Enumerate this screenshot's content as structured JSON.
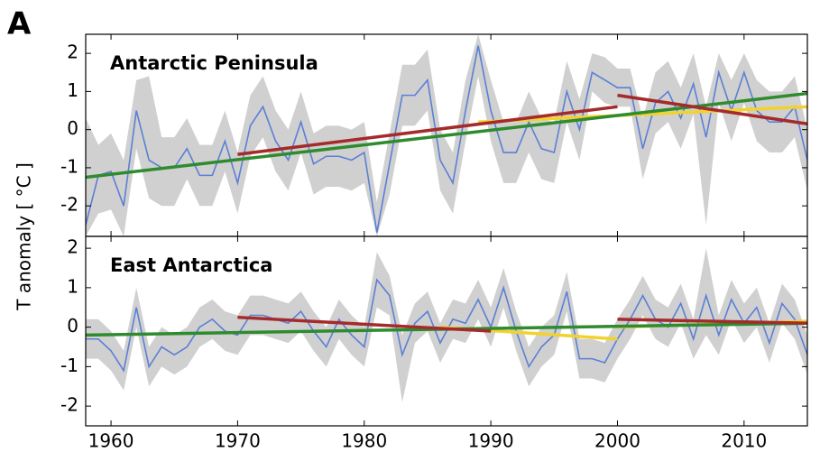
{
  "figure": {
    "panel_label": "A",
    "ylabel": "T anomaly [ °C ]"
  },
  "chart_data": [
    {
      "type": "line",
      "title": "Antarctic Peninsula",
      "x": [
        1958,
        1959,
        1960,
        1961,
        1962,
        1963,
        1964,
        1965,
        1966,
        1967,
        1968,
        1969,
        1970,
        1971,
        1972,
        1973,
        1974,
        1975,
        1976,
        1977,
        1978,
        1979,
        1980,
        1981,
        1982,
        1983,
        1984,
        1985,
        1986,
        1987,
        1988,
        1989,
        1990,
        1991,
        1992,
        1993,
        1994,
        1995,
        1996,
        1997,
        1998,
        1999,
        2000,
        2001,
        2002,
        2003,
        2004,
        2005,
        2006,
        2007,
        2008,
        2009,
        2010,
        2011,
        2012,
        2013,
        2014,
        2015
      ],
      "xlim": [
        1958,
        2015
      ],
      "ylim": [
        -2.8,
        2.5
      ],
      "yticks": [
        -2,
        -1,
        0,
        1,
        2
      ],
      "band": {
        "color": "#d0d0d0",
        "upper": [
          0.3,
          -0.4,
          -0.1,
          -0.8,
          1.3,
          1.4,
          -0.2,
          -0.2,
          0.3,
          -0.4,
          -0.4,
          0.5,
          -0.6,
          0.9,
          1.4,
          0.5,
          0.0,
          1.0,
          -0.1,
          0.1,
          0.1,
          0.0,
          0.2,
          -1.9,
          -0.1,
          1.7,
          1.7,
          2.1,
          0.0,
          -0.6,
          1.3,
          2.5,
          1.3,
          0.2,
          0.2,
          1.0,
          0.3,
          0.2,
          1.8,
          0.8,
          2.0,
          1.9,
          1.6,
          1.6,
          0.3,
          1.5,
          1.8,
          1.1,
          2.0,
          0.6,
          2.0,
          1.3,
          2.0,
          1.3,
          1.0,
          1.0,
          1.4,
          0.0
        ],
        "lower": [
          -2.8,
          -2.2,
          -2.1,
          -2.8,
          -0.5,
          -1.8,
          -2.0,
          -2.0,
          -1.3,
          -2.0,
          -2.0,
          -1.1,
          -2.2,
          -0.7,
          -0.2,
          -1.1,
          -1.6,
          -0.6,
          -1.7,
          -1.5,
          -1.5,
          -1.6,
          -1.4,
          -2.8,
          -1.7,
          0.1,
          0.1,
          0.5,
          -1.6,
          -2.2,
          -0.3,
          1.4,
          -0.3,
          -1.4,
          -1.4,
          -0.6,
          -1.3,
          -1.4,
          0.2,
          -0.8,
          1.0,
          0.7,
          0.6,
          0.6,
          -1.3,
          -0.1,
          0.2,
          -0.5,
          0.4,
          -2.5,
          0.7,
          -0.3,
          0.7,
          -0.3,
          -0.6,
          -0.6,
          -0.2,
          -1.6
        ]
      },
      "series": [
        {
          "color": "#5b7fd6",
          "values": [
            -2.5,
            -1.2,
            -1.1,
            -2.0,
            0.5,
            -0.8,
            -1.0,
            -1.0,
            -0.5,
            -1.2,
            -1.2,
            -0.3,
            -1.4,
            0.1,
            0.6,
            -0.3,
            -0.8,
            0.2,
            -0.9,
            -0.7,
            -0.7,
            -0.8,
            -0.6,
            -2.7,
            -0.9,
            0.9,
            0.9,
            1.3,
            -0.8,
            -1.4,
            0.5,
            2.2,
            0.5,
            -0.6,
            -0.6,
            0.2,
            -0.5,
            -0.6,
            1.0,
            0.0,
            1.5,
            1.3,
            1.1,
            1.1,
            -0.5,
            0.7,
            1.0,
            0.3,
            1.2,
            -0.2,
            1.5,
            0.5,
            1.5,
            0.5,
            0.2,
            0.2,
            0.6,
            -0.8
          ]
        },
        {
          "color": "#f2d22e",
          "x": [
            1989,
            2015
          ],
          "values": [
            0.2,
            0.6
          ]
        },
        {
          "color": "#2e8b2e",
          "x": [
            1958,
            2015
          ],
          "values": [
            -1.25,
            0.95
          ]
        },
        {
          "color": "#a52a2a",
          "x": [
            1970,
            2000
          ],
          "values": [
            -0.65,
            0.6
          ]
        },
        {
          "color": "#a52a2a",
          "x": [
            2000,
            2015
          ],
          "values": [
            0.9,
            0.15
          ]
        }
      ]
    },
    {
      "type": "line",
      "title": "East Antarctica",
      "x": [
        1958,
        1959,
        1960,
        1961,
        1962,
        1963,
        1964,
        1965,
        1966,
        1967,
        1968,
        1969,
        1970,
        1971,
        1972,
        1973,
        1974,
        1975,
        1976,
        1977,
        1978,
        1979,
        1980,
        1981,
        1982,
        1983,
        1984,
        1985,
        1986,
        1987,
        1988,
        1989,
        1990,
        1991,
        1992,
        1993,
        1994,
        1995,
        1996,
        1997,
        1998,
        1999,
        2000,
        2001,
        2002,
        2003,
        2004,
        2005,
        2006,
        2007,
        2008,
        2009,
        2010,
        2011,
        2012,
        2013,
        2014,
        2015
      ],
      "xlim": [
        1958,
        2015
      ],
      "xticks": [
        1960,
        1970,
        1980,
        1990,
        2000,
        2010
      ],
      "ylim": [
        -2.5,
        2.3
      ],
      "yticks": [
        -2,
        -1,
        0,
        1,
        2
      ],
      "band": {
        "color": "#d0d0d0",
        "upper": [
          0.2,
          0.2,
          -0.1,
          -0.6,
          1.0,
          -0.5,
          0.0,
          -0.2,
          0.0,
          0.5,
          0.7,
          0.4,
          0.3,
          0.8,
          0.8,
          0.7,
          0.6,
          0.9,
          0.4,
          0.0,
          0.7,
          0.3,
          0.0,
          1.9,
          1.3,
          -0.2,
          0.6,
          0.9,
          0.1,
          0.7,
          0.6,
          1.2,
          0.5,
          1.5,
          0.4,
          -0.5,
          0.0,
          0.3,
          1.4,
          -0.3,
          -0.3,
          -0.4,
          0.2,
          0.7,
          1.3,
          0.7,
          0.5,
          1.1,
          0.2,
          2.0,
          0.3,
          1.2,
          0.6,
          1.0,
          0.1,
          1.1,
          0.7,
          -0.2
        ],
        "lower": [
          -0.8,
          -0.8,
          -1.1,
          -1.6,
          0.0,
          -1.5,
          -1.0,
          -1.2,
          -1.0,
          -0.5,
          -0.3,
          -0.6,
          -0.7,
          -0.2,
          -0.2,
          -0.3,
          -0.4,
          -0.1,
          -0.6,
          -1.0,
          -0.3,
          -0.7,
          -1.0,
          0.5,
          0.3,
          -1.9,
          -0.4,
          -0.1,
          -0.9,
          -0.3,
          -0.4,
          0.2,
          -0.5,
          0.5,
          -0.6,
          -1.5,
          -1.0,
          -0.7,
          0.4,
          -1.3,
          -1.3,
          -1.4,
          -0.8,
          -0.3,
          0.3,
          -0.3,
          -0.5,
          0.1,
          -0.8,
          -0.2,
          -0.7,
          0.2,
          -0.4,
          0.0,
          -0.9,
          0.1,
          -0.3,
          -1.2
        ]
      },
      "series": [
        {
          "color": "#5b7fd6",
          "values": [
            -0.3,
            -0.3,
            -0.6,
            -1.1,
            0.5,
            -1.0,
            -0.5,
            -0.7,
            -0.5,
            0.0,
            0.2,
            -0.1,
            -0.2,
            0.3,
            0.3,
            0.2,
            0.1,
            0.4,
            -0.1,
            -0.5,
            0.2,
            -0.2,
            -0.5,
            1.2,
            0.8,
            -0.7,
            0.1,
            0.4,
            -0.4,
            0.2,
            0.1,
            0.7,
            0.0,
            1.0,
            -0.1,
            -1.0,
            -0.5,
            -0.2,
            0.9,
            -0.8,
            -0.8,
            -0.9,
            -0.3,
            0.2,
            0.8,
            0.2,
            0.0,
            0.6,
            -0.3,
            0.8,
            -0.2,
            0.7,
            0.1,
            0.5,
            -0.4,
            0.6,
            0.2,
            -0.7
          ]
        },
        {
          "color": "#f2d22e",
          "x": [
            1986,
            2000
          ],
          "values": [
            0.0,
            -0.3
          ]
        },
        {
          "color": "#f2d22e",
          "x": [
            2000,
            2015
          ],
          "values": [
            0.0,
            0.15
          ]
        },
        {
          "color": "#2e8b2e",
          "x": [
            1958,
            2015
          ],
          "values": [
            -0.2,
            0.1
          ]
        },
        {
          "color": "#a52a2a",
          "x": [
            1970,
            1990
          ],
          "values": [
            0.25,
            -0.1
          ]
        },
        {
          "color": "#a52a2a",
          "x": [
            2000,
            2015
          ],
          "values": [
            0.2,
            0.1
          ]
        }
      ]
    }
  ]
}
